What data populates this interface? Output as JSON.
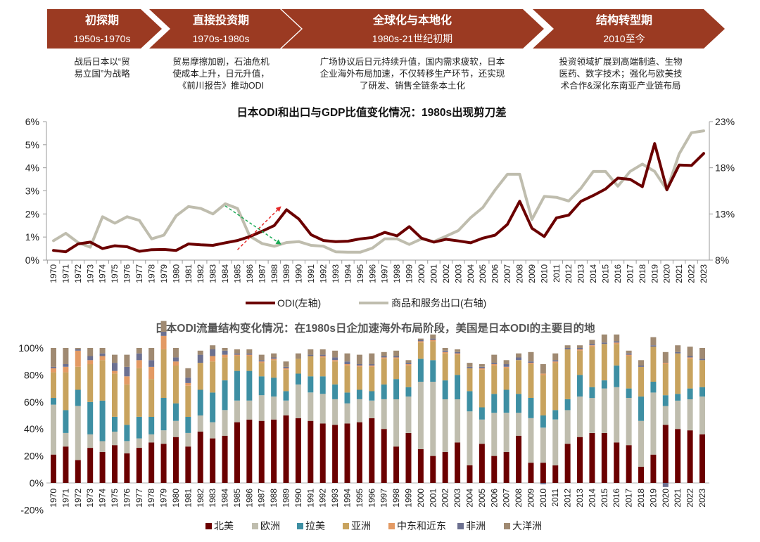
{
  "phases": [
    {
      "title": "初探期",
      "period": "1950s-1970s",
      "desc": [
        "战后日本以“贸",
        "易立国”为战略"
      ]
    },
    {
      "title": "直接投资期",
      "period": "1970s-1980s",
      "desc": [
        "贸易摩擦加剧，石油危机",
        "使成本上升，日元升值，",
        "《前川报告》推动ODI"
      ]
    },
    {
      "title": "全球化与本地化",
      "period": "1980s-21世纪初期",
      "desc": [
        "广场协议后日元持续升值，国内需求疲软，日本",
        "企业海外布局加速，不仅转移生产环节，还实现",
        "了研发、销售全链条本土化"
      ]
    },
    {
      "title": "结构转型期",
      "period": "2010至今",
      "desc": [
        "投资领域扩展到高端制造、生物",
        "医药、数字技术；强化与欧美技",
        "术合作&深化东南亚产业链布局"
      ]
    }
  ],
  "colors": {
    "phase_fill": "#9B3A22",
    "odi": "#6B0000",
    "exports": "#BFBDAE",
    "north_america": "#6B0000",
    "europe": "#BFBDAE",
    "latin_america": "#3E8FA3",
    "asia": "#C8A35E",
    "middle_east": "#E39A64",
    "africa": "#6C7090",
    "oceania": "#A08A72",
    "arrow_up": "#E52B2B",
    "arrow_down": "#1AAA55"
  },
  "chart_data": [
    {
      "type": "line",
      "title": "日本ODI和出口与GDP比值变化情况：1980s出现剪刀差",
      "x": [
        1970,
        1971,
        1972,
        1973,
        1974,
        1975,
        1976,
        1977,
        1978,
        1979,
        1980,
        1981,
        1982,
        1983,
        1984,
        1985,
        1986,
        1987,
        1988,
        1989,
        1990,
        1991,
        1992,
        1993,
        1994,
        1995,
        1996,
        1997,
        1998,
        1999,
        2000,
        2001,
        2002,
        2003,
        2004,
        2005,
        2006,
        2007,
        2008,
        2009,
        2010,
        2011,
        2012,
        2013,
        2014,
        2015,
        2016,
        2017,
        2018,
        2019,
        2020,
        2021,
        2022,
        2023
      ],
      "x_tick_labels": [
        "1970",
        "1971",
        "1972",
        "1973",
        "1974",
        "1975",
        "1976",
        "1977",
        "1978",
        "1979",
        "1980",
        "1981",
        "1982",
        "1983",
        "1984",
        "1985",
        "1986",
        "1987",
        "1988",
        "1989",
        "1990",
        "1991",
        "1992",
        "1993",
        "1994",
        "1995",
        "1996",
        "1997",
        "1998",
        "1999",
        "2000",
        "2001",
        "2002",
        "2003",
        "2004",
        "2005",
        "2006",
        "2007",
        "2008",
        "2009",
        "2010",
        "2011",
        "2012",
        "2013",
        "2014",
        "2015",
        "2016",
        "2017",
        "2018",
        "2019",
        "2020",
        "2021",
        "2022",
        "2023"
      ],
      "y_left_ticks": [
        "0%",
        "1%",
        "2%",
        "3%",
        "4%",
        "5%",
        "6%"
      ],
      "y_right_ticks": [
        "8%",
        "13%",
        "18%",
        "23%"
      ],
      "ylim_left": [
        0,
        6
      ],
      "ylim_right": [
        8,
        23
      ],
      "series": [
        {
          "name": "ODI(左轴)",
          "axis": "left",
          "values": [
            0.42,
            0.36,
            0.7,
            0.78,
            0.5,
            0.62,
            0.58,
            0.38,
            0.45,
            0.46,
            0.42,
            0.7,
            0.66,
            0.64,
            0.75,
            0.85,
            1.02,
            1.25,
            1.5,
            2.18,
            1.78,
            1.1,
            0.85,
            0.8,
            0.82,
            0.92,
            0.98,
            1.2,
            1.05,
            1.45,
            0.95,
            0.78,
            0.9,
            0.83,
            0.75,
            0.95,
            1.08,
            1.55,
            2.55,
            1.38,
            1.02,
            1.83,
            1.95,
            2.55,
            2.8,
            3.08,
            3.55,
            3.5,
            3.18,
            5.05,
            3.05,
            4.12,
            4.1,
            4.62
          ]
        },
        {
          "name": "商品和服务出口(右轴)",
          "axis": "right",
          "values": [
            10.1,
            10.9,
            9.9,
            9.4,
            12.7,
            12.0,
            12.7,
            12.3,
            10.3,
            10.7,
            12.8,
            13.8,
            13.6,
            13.0,
            14.1,
            13.6,
            10.6,
            9.8,
            9.5,
            9.9,
            10.0,
            9.6,
            9.5,
            8.9,
            8.85,
            8.85,
            9.3,
            10.3,
            10.3,
            9.7,
            10.3,
            10.0,
            10.6,
            11.2,
            12.6,
            13.7,
            15.6,
            17.3,
            17.3,
            12.4,
            14.9,
            14.8,
            14.4,
            15.8,
            17.6,
            17.6,
            16.0,
            17.6,
            18.4,
            17.6,
            15.6,
            19.5,
            21.8,
            22.0
          ]
        }
      ],
      "annotations": [
        {
          "type": "arrow",
          "color": "red",
          "dashed": true,
          "from": {
            "x": 1985,
            "y_left": 0.45
          },
          "to": {
            "x": 1988.5,
            "y_left": 2.3
          }
        },
        {
          "type": "arrow",
          "color": "green",
          "dashed": true,
          "from": {
            "x": 1984,
            "y_left": 2.35
          },
          "to": {
            "x": 1988.5,
            "y_left": 0.7
          }
        }
      ],
      "legend": [
        "ODI(左轴)",
        "商品和服务出口(右轴)"
      ],
      "legend_position": "bottom",
      "grid": false
    },
    {
      "type": "bar",
      "stacked": true,
      "title": "日本ODI流量结构变化情况：在1980s日企加速海外布局阶段，美国是日本ODI的主要目的地",
      "categories": [
        "1970",
        "1971",
        "1972",
        "1973",
        "1974",
        "1975",
        "1976",
        "1977",
        "1978",
        "1979",
        "1980",
        "1981",
        "1982",
        "1983",
        "1984",
        "1985",
        "1986",
        "1987",
        "1988",
        "1989",
        "1990",
        "1991",
        "1992",
        "1993",
        "1994",
        "1995",
        "1996",
        "1997",
        "1998",
        "1999",
        "2000",
        "2001",
        "2002",
        "2003",
        "2004",
        "2005",
        "2006",
        "2007",
        "2008",
        "2009",
        "2010",
        "2011",
        "2012",
        "2013",
        "2014",
        "2015",
        "2016",
        "2017",
        "2018",
        "2019",
        "2020",
        "2021",
        "2022",
        "2023"
      ],
      "y_ticks": [
        "-20%",
        "0%",
        "20%",
        "40%",
        "60%",
        "80%",
        "100%"
      ],
      "ylim": [
        -20,
        100
      ],
      "legend": [
        "北美",
        "欧洲",
        "拉美",
        "亚洲",
        "中东和近东",
        "非洲",
        "大洋洲"
      ],
      "legend_position": "bottom",
      "series": [
        {
          "name": "北美",
          "values": [
            21,
            27,
            17,
            26,
            23,
            28,
            22,
            26,
            30,
            29,
            34,
            27,
            38,
            33,
            35,
            45,
            47,
            46,
            47,
            50,
            48,
            46,
            44,
            43,
            44,
            45,
            48,
            40,
            27,
            37,
            25,
            20,
            23,
            30,
            13,
            29,
            20,
            23,
            35,
            15,
            15,
            13,
            29,
            34,
            37,
            37,
            30,
            28,
            12,
            21,
            43,
            40,
            39,
            36
          ]
        },
        {
          "name": "欧洲",
          "values": [
            37,
            10,
            40,
            10,
            8,
            10,
            9,
            7,
            6,
            10,
            12,
            10,
            12,
            12,
            19,
            16,
            14,
            19,
            17,
            11,
            25,
            21,
            22,
            19,
            15,
            17,
            13,
            22,
            35,
            27,
            50,
            55,
            39,
            32,
            40,
            18,
            32,
            29,
            17,
            33,
            26,
            34,
            25,
            30,
            26,
            33,
            41,
            35,
            34,
            46,
            14,
            21,
            23,
            28
          ]
        },
        {
          "name": "拉美",
          "values": [
            5,
            17,
            12,
            24,
            30,
            11,
            12,
            16,
            13,
            24,
            13,
            12,
            19,
            22,
            22,
            22,
            22,
            14,
            14,
            7,
            8,
            12,
            13,
            11,
            8,
            7,
            7,
            11,
            15,
            7,
            17,
            16,
            14,
            18,
            15,
            9,
            14,
            17,
            14,
            15,
            9,
            7,
            8,
            16,
            8,
            6,
            16,
            7,
            18,
            8,
            8,
            5,
            8,
            7
          ]
        },
        {
          "name": "亚洲",
          "values": [
            19,
            28,
            17,
            28,
            30,
            32,
            30,
            36,
            28,
            36,
            28,
            23,
            20,
            23,
            17,
            11,
            11,
            10,
            13,
            16,
            11,
            15,
            14,
            17,
            20,
            17,
            18,
            19,
            15,
            16,
            12,
            14,
            20,
            15,
            17,
            28,
            21,
            16,
            25,
            25,
            30,
            35,
            37,
            18,
            30,
            27,
            16,
            24,
            22,
            26,
            23,
            30,
            22,
            20
          ]
        },
        {
          "name": "中东和近东",
          "values": [
            3,
            4,
            12,
            3,
            3,
            2,
            6,
            6,
            9,
            10,
            3,
            2,
            0,
            4,
            2,
            1,
            1,
            1,
            1,
            1,
            0,
            0,
            1,
            1,
            1,
            1,
            1,
            1,
            1,
            1,
            1,
            1,
            1,
            1,
            0,
            1,
            1,
            1,
            0,
            1,
            1,
            1,
            0,
            1,
            1,
            0,
            1,
            1,
            0,
            0,
            1,
            0,
            1,
            0
          ]
        },
        {
          "name": "非洲",
          "values": [
            1,
            2,
            1,
            3,
            2,
            6,
            7,
            5,
            5,
            3,
            3,
            4,
            6,
            5,
            3,
            1,
            1,
            1,
            1,
            1,
            0,
            1,
            1,
            2,
            2,
            1,
            1,
            1,
            1,
            1,
            1,
            1,
            1,
            1,
            1,
            1,
            1,
            2,
            2,
            1,
            -1,
            1,
            1,
            1,
            1,
            1,
            1,
            1,
            1,
            1,
            -3,
            1,
            1,
            1
          ]
        },
        {
          "name": "大洋洲",
          "values": [
            14,
            12,
            1,
            6,
            4,
            6,
            9,
            4,
            9,
            8,
            7,
            7,
            3,
            3,
            2,
            3,
            3,
            4,
            3,
            4,
            4,
            4,
            4,
            5,
            6,
            7,
            8,
            3,
            4,
            2,
            1,
            3,
            2,
            2,
            3,
            2,
            6,
            3,
            3,
            7,
            7,
            5,
            2,
            2,
            3,
            6,
            5,
            2,
            4,
            6,
            8,
            5,
            7,
            8
          ]
        }
      ]
    }
  ]
}
